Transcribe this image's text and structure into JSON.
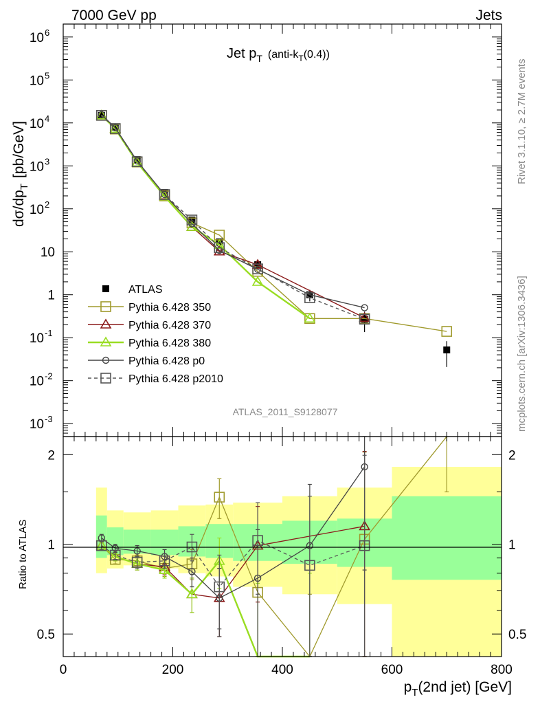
{
  "header": {
    "left": "7000 GeV pp",
    "right": "Jets"
  },
  "title": {
    "main": "Jet p",
    "sub": "T",
    "paren": "(anti-k",
    "paren_sub": "T",
    "paren_end": "(0.4))"
  },
  "side_labels": {
    "rivet": "Rivet 3.1.10, ≥ 2.7M events",
    "mcplots": "mcplots.cern.ch [arXiv:1306.3436]"
  },
  "watermark": "ATLAS_2011_S9128077",
  "axis": {
    "ylabel_main": "dσ/dp",
    "ylabel_sub": "T",
    "ylabel_unit": "[pb/GeV]",
    "ylabel_ratio": "Ratio to ATLAS",
    "xlabel_main": "p",
    "xlabel_sub": "T",
    "xlabel_rest": "(2nd jet) [GeV]",
    "x_ticks": [
      "0",
      "200",
      "400",
      "600",
      "800"
    ],
    "ratio_ticks": [
      "0.5",
      "1",
      "2"
    ],
    "main_ticks": [
      {
        "base": "10",
        "exp": "-3",
        "v": 0.001
      },
      {
        "base": "10",
        "exp": "-2",
        "v": 0.01
      },
      {
        "base": "10",
        "exp": "-1",
        "v": 0.1
      },
      {
        "base": "1",
        "exp": "",
        "v": 1
      },
      {
        "base": "10",
        "exp": "",
        "v": 10
      },
      {
        "base": "10",
        "exp": "2",
        "v": 100
      },
      {
        "base": "10",
        "exp": "3",
        "v": 1000
      },
      {
        "base": "10",
        "exp": "4",
        "v": 10000
      },
      {
        "base": "10",
        "exp": "5",
        "v": 100000
      },
      {
        "base": "10",
        "exp": "6",
        "v": 1000000
      }
    ]
  },
  "chart_data": {
    "type": "line",
    "title": "Jet pT (anti-kT(0.4))",
    "xlabel": "pT(2nd jet) [GeV]",
    "ylabel": "dσ/dpT [pb/GeV]",
    "x_scale": "linear",
    "y_scale": "log",
    "xlim": [
      0,
      800
    ],
    "ylim": [
      0.0005,
      2000000
    ],
    "ratio_ylim": [
      0.42,
      2.3
    ],
    "legend_position": "center-left",
    "grid": false,
    "bins": [
      [
        60,
        80
      ],
      [
        80,
        110
      ],
      [
        110,
        160
      ],
      [
        160,
        210
      ],
      [
        210,
        260
      ],
      [
        260,
        310
      ],
      [
        310,
        400
      ],
      [
        400,
        500
      ],
      [
        500,
        600
      ],
      [
        600,
        800
      ]
    ],
    "bands": {
      "inner": [
        1.25,
        1.14,
        1.12,
        1.12,
        1.15,
        1.17,
        1.17,
        1.2,
        1.22,
        1.45
      ],
      "inner_low": [
        0.9,
        0.92,
        0.93,
        0.92,
        0.91,
        0.9,
        0.88,
        0.86,
        0.84,
        0.76
      ],
      "outer": [
        1.55,
        1.3,
        1.28,
        1.3,
        1.35,
        1.36,
        1.38,
        1.45,
        1.55,
        1.82
      ],
      "outer_low": [
        0.8,
        0.83,
        0.85,
        0.83,
        0.8,
        0.78,
        0.72,
        0.68,
        0.63,
        0.4
      ]
    },
    "series": [
      {
        "name": "ATLAS",
        "color": "#000000",
        "marker": "filled-square",
        "line": "none",
        "x": [
          70,
          95,
          135,
          185,
          235,
          285,
          355,
          450,
          550,
          700
        ],
        "y": [
          15000,
          8000,
          1400,
          240,
          55,
          17,
          5,
          1.0,
          0.27,
          0.052
        ],
        "err": [
          0.05,
          0.05,
          0.05,
          0.06,
          0.08,
          0.15,
          0.2,
          0.3,
          0.5,
          0.6
        ]
      },
      {
        "name": "Pythia 6.428 350",
        "color": "#a09a2d",
        "marker": "open-square",
        "line": "solid",
        "x": [
          70,
          95,
          135,
          185,
          235,
          285,
          355,
          450,
          550,
          700
        ],
        "y": [
          15000,
          7200,
          1230,
          200,
          47,
          24.5,
          3.5,
          0.28,
          0.28,
          0.14
        ],
        "ratio": [
          0.99,
          0.89,
          0.88,
          0.83,
          0.86,
          1.44,
          0.69,
          0.28,
          1.04,
          2.7
        ],
        "rerr": [
          0.03,
          0.03,
          0.04,
          0.05,
          0.1,
          0.22,
          0.3,
          0.4,
          1.0,
          1.2
        ]
      },
      {
        "name": "Pythia 6.428 370",
        "color": "#8b1a1a",
        "marker": "open-triangle",
        "line": "solid",
        "x": [
          70,
          95,
          135,
          185,
          235,
          285,
          355,
          550
        ],
        "y": [
          15000,
          7300,
          1200,
          205,
          38,
          10.2,
          5,
          0.29
        ],
        "ratio": [
          0.99,
          0.91,
          0.86,
          0.84,
          0.68,
          0.66,
          0.99,
          1.15
        ],
        "rerr": [
          0.03,
          0.03,
          0.04,
          0.05,
          0.09,
          0.17,
          0.35,
          0.9
        ]
      },
      {
        "name": "Pythia 6.428 380",
        "color": "#99dd22",
        "marker": "open-triangle",
        "line": "solid",
        "x": [
          70,
          95,
          135,
          185,
          235,
          285,
          355,
          450
        ],
        "y": [
          15000,
          7300,
          1200,
          195,
          38,
          14.5,
          2.0,
          0.28
        ],
        "ratio": [
          0.99,
          0.91,
          0.86,
          0.82,
          0.68,
          0.88,
          0.39,
          0.2
        ],
        "rerr": [
          0.03,
          0.03,
          0.04,
          0.05,
          0.09,
          0.17,
          0.35,
          0.6
        ]
      },
      {
        "name": "Pythia 6.428 p0",
        "color": "#444444",
        "marker": "open-circle",
        "line": "solid",
        "x": [
          70,
          95,
          135,
          185,
          235,
          285,
          355,
          450,
          550
        ],
        "y": [
          15500,
          7700,
          1300,
          215,
          45,
          10.8,
          3.9,
          1.0,
          0.5
        ],
        "ratio": [
          1.05,
          0.97,
          0.95,
          0.91,
          0.81,
          0.66,
          0.77,
          0.99,
          1.82
        ],
        "rerr": [
          0.03,
          0.03,
          0.04,
          0.05,
          0.09,
          0.17,
          0.35,
          0.6,
          1.0
        ]
      },
      {
        "name": "Pythia 6.428 p2010",
        "color": "#555555",
        "marker": "open-square",
        "line": "dashed",
        "x": [
          70,
          95,
          135,
          185,
          235,
          285,
          355,
          450,
          550
        ],
        "y": [
          15000,
          7400,
          1250,
          215,
          55,
          12.5,
          4.0,
          0.85,
          0.27
        ],
        "ratio": [
          0.99,
          0.92,
          0.87,
          0.88,
          0.98,
          0.72,
          1.03,
          0.85,
          0.99
        ],
        "rerr": [
          0.03,
          0.03,
          0.04,
          0.05,
          0.1,
          0.2,
          0.35,
          0.6,
          1.0
        ]
      }
    ]
  }
}
